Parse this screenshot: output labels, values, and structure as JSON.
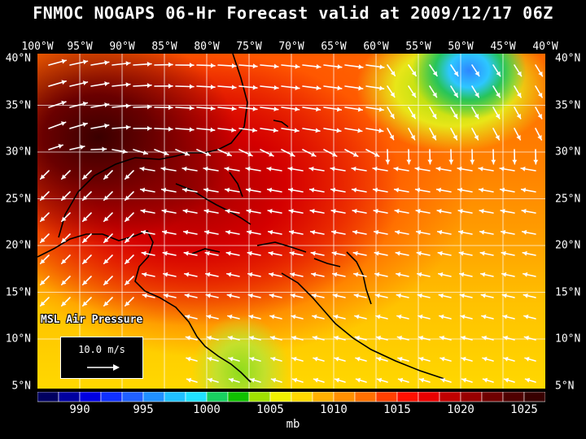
{
  "title": "FNMOC NOGAPS 06-Hr Forecast valid at 2009/12/17 06Z",
  "longitude_labels": [
    "100°W",
    "95°W",
    "90°W",
    "85°W",
    "80°W",
    "75°W",
    "70°W",
    "65°W",
    "60°W",
    "55°W",
    "50°W",
    "45°W",
    "40°W"
  ],
  "latitude_labels": [
    "40°N",
    "35°N",
    "30°N",
    "25°N",
    "20°N",
    "15°N",
    "10°N",
    "5°N"
  ],
  "field_label": "MSL Air Pressure",
  "vector_key": "10.0 m/s",
  "colorbar": {
    "colors": [
      "#000060",
      "#0000a0",
      "#0000e0",
      "#1030ff",
      "#2060ff",
      "#2090ff",
      "#20c0ff",
      "#20e0ff",
      "#18d060",
      "#10c000",
      "#a0e000",
      "#f0f000",
      "#ffd800",
      "#ffb000",
      "#ff9000",
      "#ff7000",
      "#ff4000",
      "#ff1000",
      "#e80000",
      "#c00000",
      "#980000",
      "#700000",
      "#500000",
      "#380000"
    ],
    "labels": [
      "990",
      "995",
      "1000",
      "1005",
      "1010",
      "1015",
      "1020",
      "1025"
    ],
    "units": "mb"
  }
}
